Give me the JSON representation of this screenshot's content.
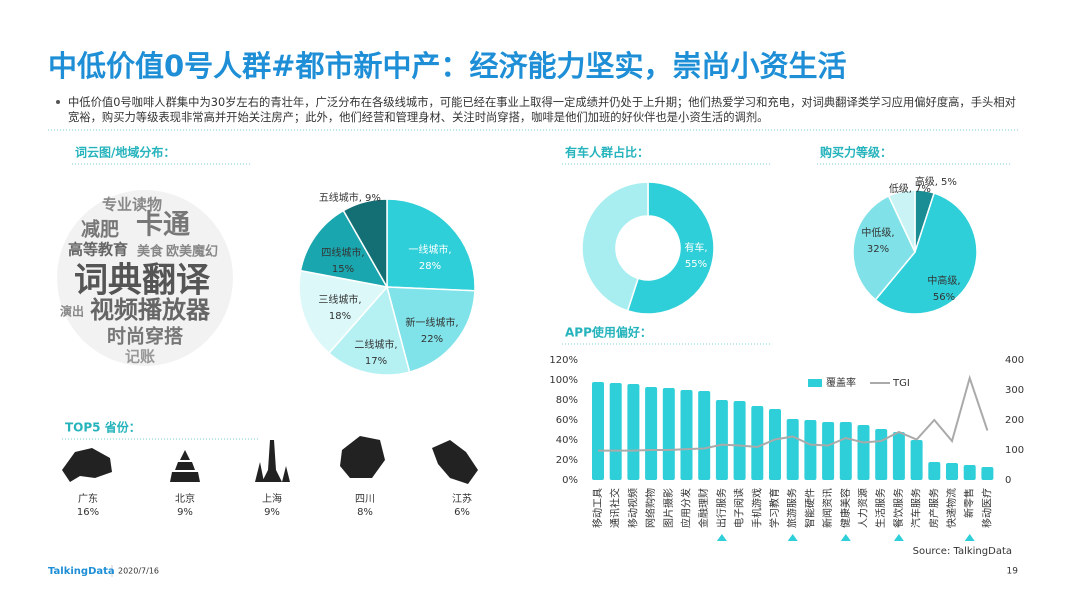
{
  "title": "中低价值0号人群#都市新中产：经济能力坚实，崇尚小资生活",
  "bullet": "中低价值0号咖啡人群集中为30岁左右的青壮年，广泛分布在各级线城市，可能已经在事业上取得一定成绩并仍处于上升期；他们热爱学习和充电，对词典翻译类学习应用偏好度高，手头相对宽裕，购买力等级表现非常高并开始关注房产；此外，他们经营和管理身材、关注时尚穿搭，咖啡是他们加班的好伙伴也是小资生活的调剂。",
  "word_cloud": {
    "title": "词云图/地域分布：",
    "words": [
      "专业读物",
      "卡通",
      "减肥",
      "高等教育",
      "美食",
      "欧美魔幻",
      "词典翻译",
      "视频播放器",
      "演出",
      "时尚穿搭",
      "记账"
    ]
  },
  "provinces": {
    "title": "TOP5 省份：",
    "names": [
      "广东",
      "北京",
      "上海",
      "四川",
      "江苏"
    ],
    "values": [
      16,
      9,
      9,
      8,
      6
    ],
    "value_labels": [
      "16%",
      "9%",
      "9%",
      "8%",
      "6%"
    ]
  },
  "chart_data": [
    {
      "type": "pie",
      "categories": [
        "一线城市,",
        "新一线城市,",
        "二线城市,",
        "三线城市,",
        "四线城市,",
        "五线城市,"
      ],
      "values": [
        28,
        22,
        17,
        18,
        15,
        9
      ],
      "value_labels": [
        "28%",
        "22%",
        "17%",
        "18%",
        "15%",
        "9%"
      ],
      "colors": [
        "#2ecfd8",
        "#7fe3e9",
        "#b5f0f3",
        "#dcf8f9",
        "#1aa6ae",
        "#146f75"
      ]
    },
    {
      "type": "donut",
      "title": "有车人群占比：",
      "categories": [
        "有车,",
        null
      ],
      "values": [
        55,
        45
      ],
      "value_labels": [
        "55%",
        null
      ],
      "colors": [
        "#2ecfd8",
        "#a8eef1"
      ]
    },
    {
      "type": "pie",
      "title": "购买力等级：",
      "categories": [
        "高级,",
        "中高级,",
        "中低级,",
        "低级,"
      ],
      "values": [
        5,
        56,
        32,
        7
      ],
      "value_labels": [
        "5%",
        "56%",
        "32%",
        "7%"
      ],
      "colors": [
        "#1a8d94",
        "#2ecfd8",
        "#80e2e8",
        "#c9f3f5"
      ]
    },
    {
      "type": "bar",
      "title": "APP使用偏好：",
      "categories": [
        "移动工具",
        "通讯社交",
        "移动视频",
        "网络购物",
        "图片摄影",
        "应用分发",
        "金融理财",
        "出行服务",
        "电子阅读",
        "手机游戏",
        "学习教育",
        "旅游服务",
        "智能硬件",
        "新闻资讯",
        "健康美容",
        "人力资源",
        "生活服务",
        "餐饮服务",
        "汽车服务",
        "房产服务",
        "快递物流",
        "新零售",
        "移动医疗"
      ],
      "series": [
        {
          "name": "覆盖率",
          "color": "#2ecfd8",
          "values": [
            98,
            97,
            96,
            93,
            92,
            90,
            89,
            80,
            79,
            74,
            71,
            61,
            60,
            58,
            58,
            55,
            51,
            48,
            40,
            18,
            17,
            15,
            13
          ]
        },
        {
          "name": "TGI",
          "color": "#aaaaaa",
          "axis": "y2",
          "values": [
            98,
            98,
            98,
            100,
            100,
            103,
            105,
            118,
            115,
            110,
            135,
            145,
            118,
            115,
            140,
            125,
            130,
            160,
            135,
            200,
            130,
            340,
            165
          ]
        }
      ],
      "highlighted_categories": [
        7,
        11,
        14,
        17,
        21
      ],
      "ylim": [
        0,
        120
      ],
      "yticks": [
        {
          "value": 0,
          "label": "0%"
        },
        {
          "value": 20,
          "label": "20%"
        },
        {
          "value": 40,
          "label": "40%"
        },
        {
          "value": 60,
          "label": "60%"
        },
        {
          "value": 80,
          "label": "80%"
        },
        {
          "value": 100,
          "label": "100%"
        },
        {
          "value": 120,
          "label": "120%"
        }
      ],
      "y2lim": [
        0,
        400
      ],
      "y2ticks": [
        0,
        100,
        200,
        300,
        400
      ],
      "source": "Source: TalkingData"
    }
  ],
  "footer": {
    "logo": "TalkingData",
    "date": "2020/7/16",
    "page": "19"
  }
}
